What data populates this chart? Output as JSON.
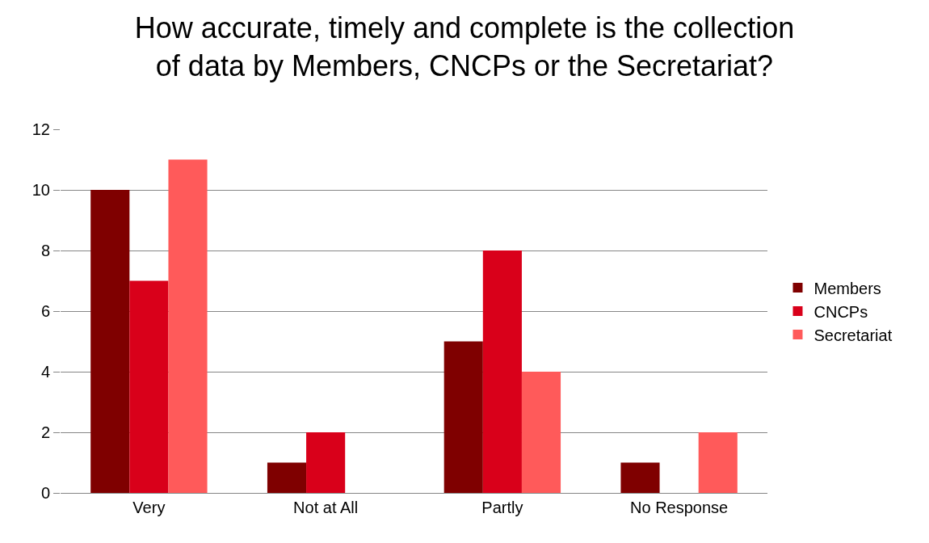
{
  "chart_data": {
    "type": "bar",
    "title": "How accurate, timely and complete is the collection\nof data by Members, CNCPs or the Secretariat?",
    "categories": [
      "Very",
      "Not at All",
      "Partly",
      "No Response"
    ],
    "series": [
      {
        "name": "Members",
        "color": "#7f0000",
        "values": [
          10,
          1,
          5,
          1
        ]
      },
      {
        "name": "CNCPs",
        "color": "#d9001a",
        "values": [
          7,
          2,
          8,
          0
        ]
      },
      {
        "name": "Secretariat",
        "color": "#ff5a5a",
        "values": [
          11,
          0,
          4,
          2
        ]
      }
    ],
    "ylim": [
      0,
      12
    ],
    "yticks": [
      0,
      2,
      4,
      6,
      8,
      10,
      12
    ],
    "grid": "y",
    "legend": "right"
  }
}
